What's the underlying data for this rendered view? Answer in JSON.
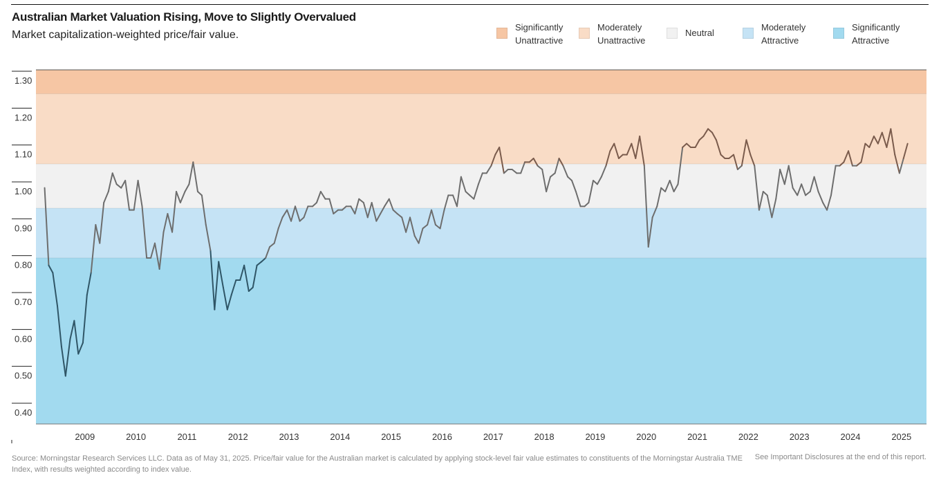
{
  "chart_data": {
    "type": "line",
    "title": "Australian Market Valuation Rising, Move to Slightly Overvalued",
    "subtitle": "Market capitalization-weighted price/fair value.",
    "ylim": [
      0.37,
      1.33
    ],
    "xlim": [
      2008.0,
      2025.45
    ],
    "y_ticks": [
      "1.30",
      "1.20",
      "1.10",
      "1.00",
      "0.90",
      "0.80",
      "0.70",
      "0.60",
      "0.50",
      "0.40"
    ],
    "x_ticks": [
      "2009",
      "2010",
      "2011",
      "2012",
      "2013",
      "2014",
      "2015",
      "2016",
      "2017",
      "2018",
      "2019",
      "2020",
      "2021",
      "2022",
      "2023",
      "2024",
      "2025"
    ],
    "bands": [
      {
        "name": "Significantly Unattractive",
        "from": 1.265,
        "to": 1.33,
        "color": "#f6c6a4"
      },
      {
        "name": "Moderately Unattractive",
        "from": 1.075,
        "to": 1.265,
        "color": "#f9dcc6"
      },
      {
        "name": "Neutral",
        "from": 0.955,
        "to": 1.075,
        "color": "#f1f1f1"
      },
      {
        "name": "Moderately Attractive",
        "from": 0.82,
        "to": 0.955,
        "color": "#c5e3f5"
      },
      {
        "name": "Significantly Attractive",
        "from": 0.37,
        "to": 0.82,
        "color": "#a2daef"
      }
    ],
    "legend": [
      {
        "label_line1": "Significantly",
        "label_line2": "Unattractive",
        "color": "#f6c6a4"
      },
      {
        "label_line1": "Moderately",
        "label_line2": "Unattractive",
        "color": "#f9dcc6"
      },
      {
        "label_line1": "Neutral",
        "label_line2": "",
        "color": "#f1f1f1"
      },
      {
        "label_line1": "Moderately",
        "label_line2": "Attractive",
        "color": "#c5e3f5"
      },
      {
        "label_line1": "Significantly",
        "label_line2": "Attractive",
        "color": "#a2daef"
      }
    ],
    "series": [
      {
        "name": "Price/Fair Value",
        "color_high": "#7a5b4c",
        "color_mid": "#6d6d6d",
        "color_low": "#2f5566",
        "points": [
          [
            2008.17,
            1.01
          ],
          [
            2008.25,
            0.8
          ],
          [
            2008.33,
            0.78
          ],
          [
            2008.42,
            0.69
          ],
          [
            2008.5,
            0.58
          ],
          [
            2008.58,
            0.5
          ],
          [
            2008.67,
            0.6
          ],
          [
            2008.75,
            0.65
          ],
          [
            2008.83,
            0.56
          ],
          [
            2008.92,
            0.59
          ],
          [
            2009.0,
            0.72
          ],
          [
            2009.08,
            0.78
          ],
          [
            2009.17,
            0.91
          ],
          [
            2009.25,
            0.86
          ],
          [
            2009.33,
            0.97
          ],
          [
            2009.42,
            1.0
          ],
          [
            2009.5,
            1.05
          ],
          [
            2009.58,
            1.02
          ],
          [
            2009.67,
            1.01
          ],
          [
            2009.75,
            1.03
          ],
          [
            2009.83,
            0.95
          ],
          [
            2009.92,
            0.95
          ],
          [
            2010.0,
            1.03
          ],
          [
            2010.08,
            0.96
          ],
          [
            2010.17,
            0.82
          ],
          [
            2010.25,
            0.82
          ],
          [
            2010.33,
            0.86
          ],
          [
            2010.42,
            0.79
          ],
          [
            2010.5,
            0.89
          ],
          [
            2010.58,
            0.94
          ],
          [
            2010.67,
            0.89
          ],
          [
            2010.75,
            1.0
          ],
          [
            2010.83,
            0.97
          ],
          [
            2010.92,
            1.0
          ],
          [
            2011.0,
            1.02
          ],
          [
            2011.08,
            1.08
          ],
          [
            2011.17,
            1.0
          ],
          [
            2011.25,
            0.99
          ],
          [
            2011.33,
            0.91
          ],
          [
            2011.42,
            0.84
          ],
          [
            2011.5,
            0.68
          ],
          [
            2011.58,
            0.81
          ],
          [
            2011.67,
            0.74
          ],
          [
            2011.75,
            0.68
          ],
          [
            2011.83,
            0.72
          ],
          [
            2011.92,
            0.76
          ],
          [
            2012.0,
            0.76
          ],
          [
            2012.08,
            0.8
          ],
          [
            2012.17,
            0.73
          ],
          [
            2012.25,
            0.74
          ],
          [
            2012.33,
            0.8
          ],
          [
            2012.42,
            0.81
          ],
          [
            2012.5,
            0.82
          ],
          [
            2012.58,
            0.85
          ],
          [
            2012.67,
            0.86
          ],
          [
            2012.75,
            0.9
          ],
          [
            2012.83,
            0.93
          ],
          [
            2012.92,
            0.95
          ],
          [
            2013.0,
            0.92
          ],
          [
            2013.08,
            0.96
          ],
          [
            2013.17,
            0.92
          ],
          [
            2013.25,
            0.93
          ],
          [
            2013.33,
            0.96
          ],
          [
            2013.42,
            0.96
          ],
          [
            2013.5,
            0.97
          ],
          [
            2013.58,
            1.0
          ],
          [
            2013.67,
            0.98
          ],
          [
            2013.75,
            0.98
          ],
          [
            2013.83,
            0.94
          ],
          [
            2013.92,
            0.95
          ],
          [
            2014.0,
            0.95
          ],
          [
            2014.08,
            0.96
          ],
          [
            2014.17,
            0.96
          ],
          [
            2014.25,
            0.94
          ],
          [
            2014.33,
            0.98
          ],
          [
            2014.42,
            0.97
          ],
          [
            2014.5,
            0.93
          ],
          [
            2014.58,
            0.97
          ],
          [
            2014.67,
            0.92
          ],
          [
            2014.75,
            0.94
          ],
          [
            2014.83,
            0.96
          ],
          [
            2014.92,
            0.98
          ],
          [
            2015.0,
            0.95
          ],
          [
            2015.08,
            0.94
          ],
          [
            2015.17,
            0.93
          ],
          [
            2015.25,
            0.89
          ],
          [
            2015.33,
            0.93
          ],
          [
            2015.42,
            0.88
          ],
          [
            2015.5,
            0.86
          ],
          [
            2015.58,
            0.9
          ],
          [
            2015.67,
            0.91
          ],
          [
            2015.75,
            0.95
          ],
          [
            2015.83,
            0.91
          ],
          [
            2015.92,
            0.9
          ],
          [
            2016.0,
            0.95
          ],
          [
            2016.08,
            0.99
          ],
          [
            2016.17,
            0.99
          ],
          [
            2016.25,
            0.96
          ],
          [
            2016.33,
            1.04
          ],
          [
            2016.42,
            1.0
          ],
          [
            2016.5,
            0.99
          ],
          [
            2016.58,
            0.98
          ],
          [
            2016.67,
            1.02
          ],
          [
            2016.75,
            1.05
          ],
          [
            2016.83,
            1.05
          ],
          [
            2016.92,
            1.07
          ],
          [
            2017.0,
            1.1
          ],
          [
            2017.08,
            1.12
          ],
          [
            2017.17,
            1.05
          ],
          [
            2017.25,
            1.06
          ],
          [
            2017.33,
            1.06
          ],
          [
            2017.42,
            1.05
          ],
          [
            2017.5,
            1.05
          ],
          [
            2017.58,
            1.08
          ],
          [
            2017.67,
            1.08
          ],
          [
            2017.75,
            1.09
          ],
          [
            2017.83,
            1.07
          ],
          [
            2017.92,
            1.06
          ],
          [
            2018.0,
            1.0
          ],
          [
            2018.08,
            1.04
          ],
          [
            2018.17,
            1.05
          ],
          [
            2018.25,
            1.09
          ],
          [
            2018.33,
            1.07
          ],
          [
            2018.42,
            1.04
          ],
          [
            2018.5,
            1.03
          ],
          [
            2018.58,
            1.0
          ],
          [
            2018.67,
            0.96
          ],
          [
            2018.75,
            0.96
          ],
          [
            2018.83,
            0.97
          ],
          [
            2018.92,
            1.03
          ],
          [
            2019.0,
            1.02
          ],
          [
            2019.08,
            1.04
          ],
          [
            2019.17,
            1.07
          ],
          [
            2019.25,
            1.11
          ],
          [
            2019.33,
            1.13
          ],
          [
            2019.42,
            1.09
          ],
          [
            2019.5,
            1.1
          ],
          [
            2019.58,
            1.1
          ],
          [
            2019.67,
            1.13
          ],
          [
            2019.75,
            1.09
          ],
          [
            2019.83,
            1.15
          ],
          [
            2019.92,
            1.07
          ],
          [
            2020.0,
            0.85
          ],
          [
            2020.08,
            0.93
          ],
          [
            2020.17,
            0.96
          ],
          [
            2020.25,
            1.01
          ],
          [
            2020.33,
            1.0
          ],
          [
            2020.42,
            1.03
          ],
          [
            2020.5,
            1.0
          ],
          [
            2020.58,
            1.02
          ],
          [
            2020.67,
            1.12
          ],
          [
            2020.75,
            1.13
          ],
          [
            2020.83,
            1.12
          ],
          [
            2020.92,
            1.12
          ],
          [
            2021.0,
            1.14
          ],
          [
            2021.08,
            1.15
          ],
          [
            2021.17,
            1.17
          ],
          [
            2021.25,
            1.16
          ],
          [
            2021.33,
            1.14
          ],
          [
            2021.42,
            1.1
          ],
          [
            2021.5,
            1.09
          ],
          [
            2021.58,
            1.09
          ],
          [
            2021.67,
            1.1
          ],
          [
            2021.75,
            1.06
          ],
          [
            2021.83,
            1.07
          ],
          [
            2021.92,
            1.14
          ],
          [
            2022.0,
            1.1
          ],
          [
            2022.08,
            1.07
          ],
          [
            2022.17,
            0.95
          ],
          [
            2022.25,
            1.0
          ],
          [
            2022.33,
            0.99
          ],
          [
            2022.42,
            0.93
          ],
          [
            2022.5,
            0.98
          ],
          [
            2022.58,
            1.06
          ],
          [
            2022.67,
            1.02
          ],
          [
            2022.75,
            1.07
          ],
          [
            2022.83,
            1.01
          ],
          [
            2022.92,
            0.99
          ],
          [
            2023.0,
            1.02
          ],
          [
            2023.08,
            0.99
          ],
          [
            2023.17,
            1.0
          ],
          [
            2023.25,
            1.04
          ],
          [
            2023.33,
            1.0
          ],
          [
            2023.42,
            0.97
          ],
          [
            2023.5,
            0.95
          ],
          [
            2023.58,
            0.99
          ],
          [
            2023.67,
            1.07
          ],
          [
            2023.75,
            1.07
          ],
          [
            2023.83,
            1.08
          ],
          [
            2023.92,
            1.11
          ],
          [
            2024.0,
            1.07
          ],
          [
            2024.08,
            1.07
          ],
          [
            2024.17,
            1.08
          ],
          [
            2024.25,
            1.13
          ],
          [
            2024.33,
            1.12
          ],
          [
            2024.42,
            1.15
          ],
          [
            2024.5,
            1.13
          ],
          [
            2024.58,
            1.16
          ],
          [
            2024.67,
            1.12
          ],
          [
            2024.75,
            1.17
          ],
          [
            2024.83,
            1.1
          ],
          [
            2024.92,
            1.05
          ],
          [
            2025.0,
            1.09
          ],
          [
            2025.08,
            1.13
          ]
        ]
      }
    ]
  },
  "footer": {
    "source": "Source: Morningstar Research Services LLC. Data as of May 31, 2025. Price/fair value for the Australian market is calculated by applying stock-level fair value estimates to constituents of the Morningstar Australia TME Index, with results weighted according to index value.",
    "disclosure": "See Important Disclosures at the end of this report."
  }
}
